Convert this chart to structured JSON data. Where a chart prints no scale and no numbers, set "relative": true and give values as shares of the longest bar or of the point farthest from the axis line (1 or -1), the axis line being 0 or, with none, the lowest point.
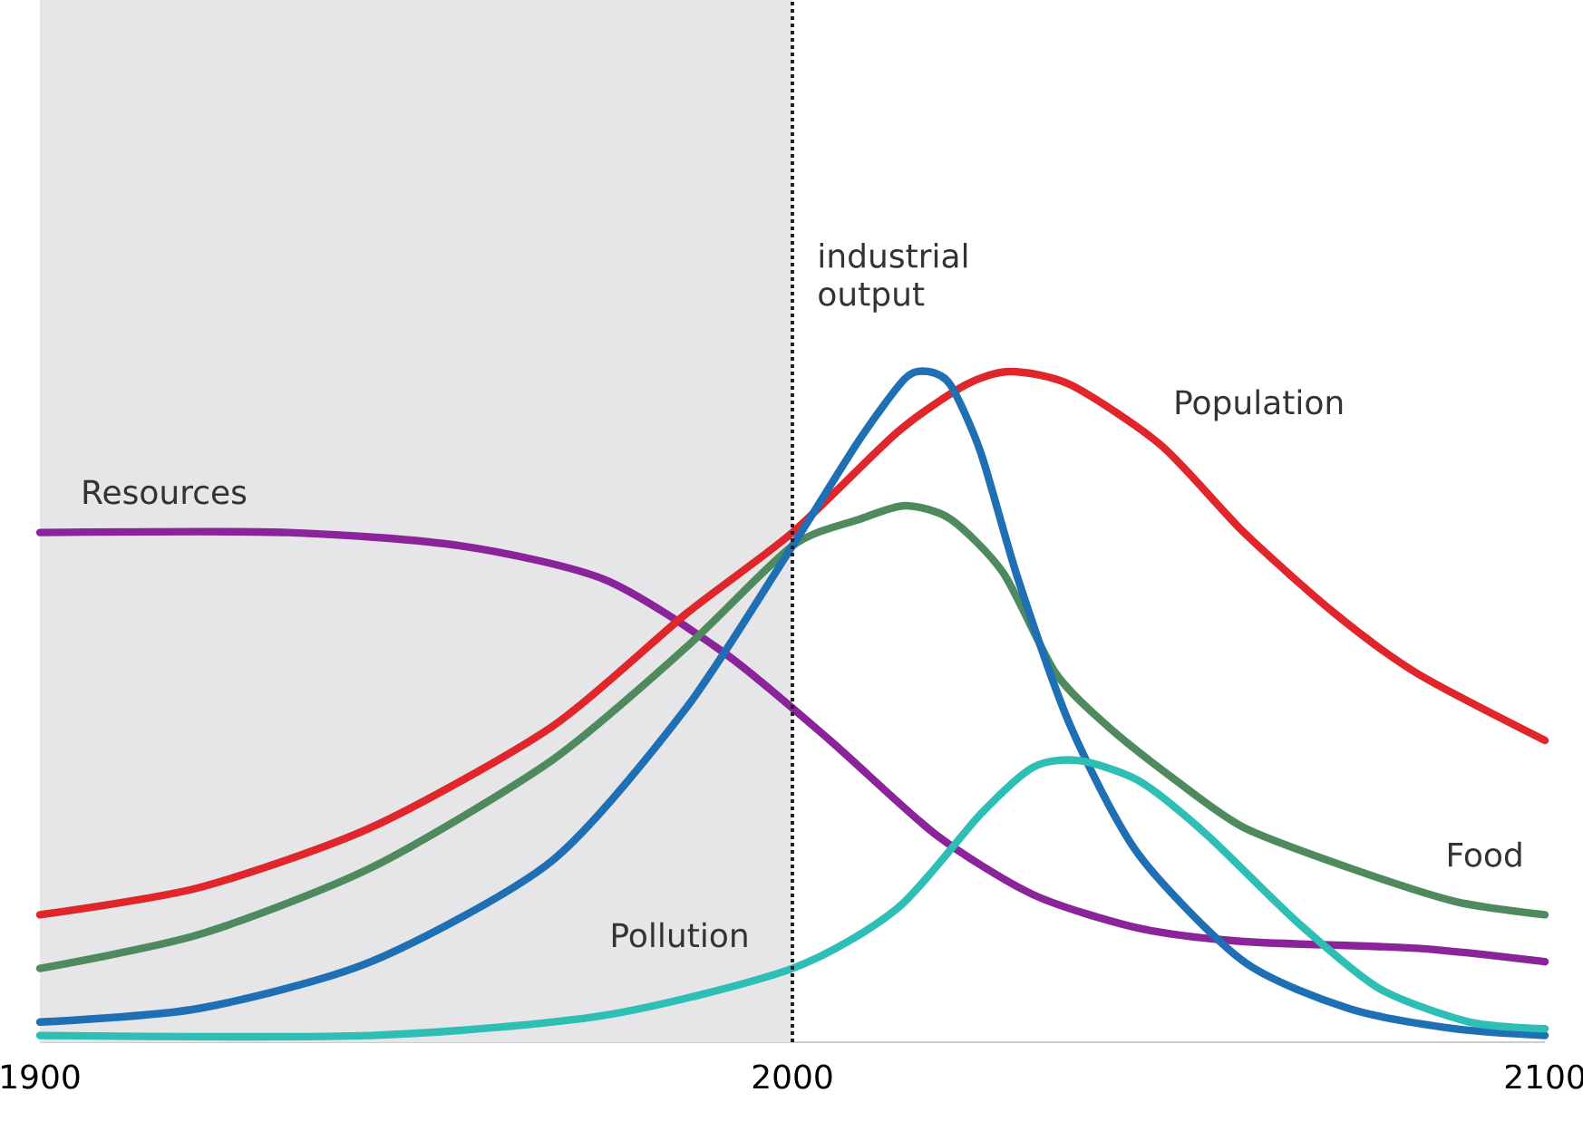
{
  "chart_data": {
    "type": "line",
    "relative": true,
    "marker": "none",
    "line_style": "solid",
    "grid": false,
    "xlim": [
      1900,
      2100
    ],
    "xticks": [
      1900,
      2000,
      2100
    ],
    "bands": [
      {
        "axis": "x",
        "from": 1900,
        "to": 2000,
        "color": "#e6e6e9"
      }
    ],
    "ref_lines": [
      {
        "axis": "x",
        "value": 2000,
        "color": "#222222",
        "line_style": "dotted"
      }
    ],
    "series": [
      {
        "name": "Resources",
        "color": "#8b239a",
        "x": [
          1900,
          1933,
          1956,
          1975,
          1991,
          2005,
          2019,
          2032,
          2046,
          2060,
          2083,
          2100
        ],
        "values": [
          0.76,
          0.76,
          0.74,
          0.69,
          0.58,
          0.45,
          0.31,
          0.22,
          0.17,
          0.15,
          0.14,
          0.12
        ]
      },
      {
        "name": "Population",
        "color": "#e0262a",
        "x": [
          1900,
          1921,
          1944,
          1968,
          1986,
          2000,
          2014,
          2023,
          2029,
          2037,
          2049,
          2060,
          2072,
          2083,
          2100
        ],
        "values": [
          0.19,
          0.23,
          0.32,
          0.47,
          0.64,
          0.76,
          0.91,
          0.98,
          1.0,
          0.98,
          0.89,
          0.76,
          0.64,
          0.55,
          0.45
        ]
      },
      {
        "name": "Food",
        "color": "#4e8a5e",
        "x": [
          1900,
          1921,
          1944,
          1968,
          1986,
          2000,
          2009,
          2015,
          2021,
          2028,
          2035,
          2042,
          2051,
          2060,
          2074,
          2088,
          2100
        ],
        "values": [
          0.11,
          0.16,
          0.26,
          0.42,
          0.59,
          0.74,
          0.78,
          0.8,
          0.78,
          0.7,
          0.55,
          0.47,
          0.39,
          0.32,
          0.26,
          0.21,
          0.19
        ]
      },
      {
        "name": "industrial output",
        "color": "#1f6fb5",
        "x": [
          1900,
          1921,
          1944,
          1968,
          1986,
          2000,
          2009,
          2015,
          2018,
          2021,
          2025,
          2030,
          2037,
          2046,
          2060,
          2074,
          2088,
          2100
        ],
        "values": [
          0.03,
          0.05,
          0.12,
          0.27,
          0.5,
          0.74,
          0.9,
          0.99,
          1.0,
          0.98,
          0.88,
          0.69,
          0.47,
          0.28,
          0.12,
          0.05,
          0.02,
          0.01
        ]
      },
      {
        "name": "Pollution",
        "color": "#2dbfb5",
        "x": [
          1900,
          1944,
          1975,
          2000,
          2014,
          2025,
          2032,
          2038,
          2046,
          2055,
          2067,
          2078,
          2090,
          2100
        ],
        "values": [
          0.01,
          0.01,
          0.04,
          0.11,
          0.2,
          0.34,
          0.41,
          0.42,
          0.39,
          0.31,
          0.18,
          0.08,
          0.03,
          0.02
        ]
      }
    ]
  }
}
